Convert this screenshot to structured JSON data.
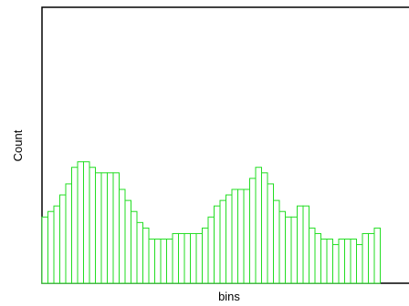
{
  "chart_data": {
    "type": "bar",
    "title": "",
    "xlabel": "bins",
    "ylabel": "Count",
    "ylim": [
      0,
      100
    ],
    "grid": false,
    "legend": "none",
    "colors": {
      "bar_stroke": "#22dd22",
      "axis": "#000000",
      "background": "#ffffff"
    },
    "values": [
      24,
      26,
      28,
      32,
      36,
      42,
      44,
      44,
      42,
      40,
      40,
      40,
      40,
      34,
      30,
      26,
      22,
      20,
      16,
      16,
      16,
      16,
      18,
      18,
      18,
      18,
      18,
      20,
      24,
      28,
      30,
      32,
      34,
      34,
      34,
      38,
      42,
      40,
      36,
      30,
      26,
      24,
      24,
      28,
      28,
      20,
      18,
      16,
      16,
      14,
      16,
      16,
      16,
      14,
      18,
      18,
      20
    ]
  }
}
